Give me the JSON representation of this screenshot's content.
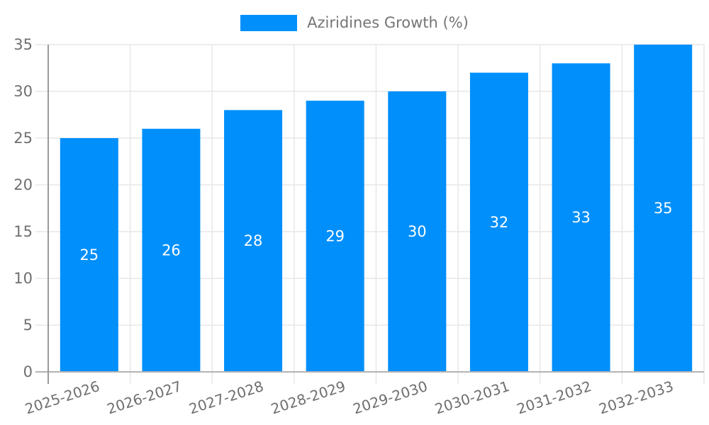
{
  "chart_data": {
    "type": "bar",
    "title": "",
    "legend": "Aziridines Growth (%)",
    "legend_position": "top-center",
    "categories": [
      "2025-2026",
      "2026-2027",
      "2027-2028",
      "2028-2029",
      "2029-2030",
      "2030-2031",
      "2031-2032",
      "2032-2033"
    ],
    "values": [
      25,
      26,
      28,
      29,
      30,
      32,
      33,
      35
    ],
    "xlabel": "",
    "ylabel": "",
    "ylim": [
      0,
      35
    ],
    "yticks": [
      0,
      5,
      10,
      15,
      20,
      25,
      30,
      35
    ],
    "grid": "on",
    "bar_color": "#008ffb",
    "value_label_color": "#ffffff",
    "grid_color": "#e7e7e7",
    "x_axis_line_color": "#b3b3b3",
    "y_axis_line_color": "#9a9a9a",
    "tick_label_color": "#6f6f6f",
    "legend_text_color": "#757575",
    "background_color": "#ffffff"
  }
}
